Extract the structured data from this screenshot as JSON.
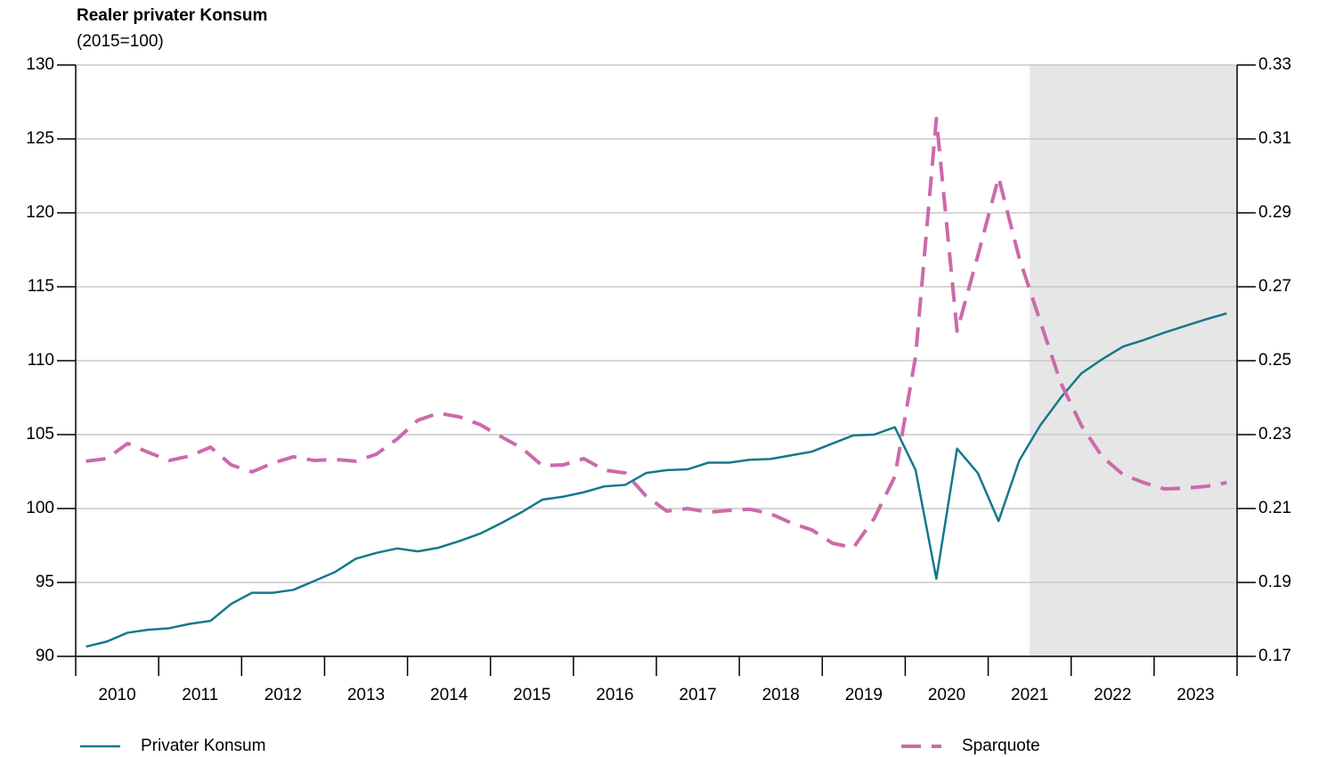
{
  "chart_data": {
    "type": "line",
    "title": "Realer privater Konsum",
    "subtitle": "(2015=100)",
    "x": [
      2010.125,
      2010.375,
      2010.625,
      2010.875,
      2011.125,
      2011.375,
      2011.625,
      2011.875,
      2012.125,
      2012.375,
      2012.625,
      2012.875,
      2013.125,
      2013.375,
      2013.625,
      2013.875,
      2014.125,
      2014.375,
      2014.625,
      2014.875,
      2015.125,
      2015.375,
      2015.625,
      2015.875,
      2016.125,
      2016.375,
      2016.625,
      2016.875,
      2017.125,
      2017.375,
      2017.625,
      2017.875,
      2018.125,
      2018.375,
      2018.625,
      2018.875,
      2019.125,
      2019.375,
      2019.625,
      2019.875,
      2020.125,
      2020.375,
      2020.625,
      2020.875,
      2021.125,
      2021.375,
      2021.625,
      2021.875,
      2022.125,
      2022.375,
      2022.625,
      2022.875,
      2023.125,
      2023.375,
      2023.625,
      2023.875
    ],
    "series": [
      {
        "name": "Privater Konsum",
        "color": "#13798a",
        "dash": false,
        "axis": "y",
        "values": [
          90.66,
          91.0,
          91.6,
          91.8,
          91.9,
          92.2,
          92.4,
          93.55,
          94.3,
          94.3,
          94.5,
          95.1,
          95.7,
          96.6,
          97.0,
          97.3,
          97.1,
          97.35,
          97.8,
          98.3,
          99.0,
          99.75,
          100.6,
          100.8,
          101.1,
          101.5,
          101.6,
          102.4,
          102.6,
          102.65,
          103.1,
          103.1,
          103.3,
          103.35,
          103.6,
          103.85,
          104.4,
          104.95,
          105.0,
          105.5,
          102.6,
          95.25,
          104.05,
          102.4,
          99.15,
          103.25,
          105.6,
          107.5,
          109.15,
          110.1,
          110.95,
          111.4,
          111.9,
          112.35,
          112.8,
          113.2
        ]
      },
      {
        "name": "Sparquote",
        "color": "#cc6aab",
        "dash": true,
        "axis": "y2",
        "values": [
          0.2228,
          0.2235,
          0.2276,
          0.2252,
          0.223,
          0.2242,
          0.2266,
          0.2218,
          0.2199,
          0.2223,
          0.224,
          0.223,
          0.2233,
          0.2228,
          0.2247,
          0.2288,
          0.2339,
          0.2358,
          0.2348,
          0.2327,
          0.2295,
          0.2264,
          0.2216,
          0.2218,
          0.2235,
          0.2204,
          0.2196,
          0.2134,
          0.2093,
          0.21,
          0.209,
          0.2095,
          0.2098,
          0.2086,
          0.2061,
          0.2042,
          0.2006,
          0.1994,
          0.2073,
          0.2187,
          0.2512,
          0.3155,
          0.258,
          0.2784,
          0.2996,
          0.2777,
          0.2608,
          0.244,
          0.2324,
          0.224,
          0.2192,
          0.217,
          0.2153,
          0.2155,
          0.216,
          0.217
        ]
      }
    ],
    "xlim": [
      2010,
      2024
    ],
    "xticks": [
      {
        "value": 2010.5,
        "label": "2010"
      },
      {
        "value": 2011.5,
        "label": "2011"
      },
      {
        "value": 2012.5,
        "label": "2012"
      },
      {
        "value": 2013.5,
        "label": "2013"
      },
      {
        "value": 2014.5,
        "label": "2014"
      },
      {
        "value": 2015.5,
        "label": "2015"
      },
      {
        "value": 2016.5,
        "label": "2016"
      },
      {
        "value": 2017.5,
        "label": "2017"
      },
      {
        "value": 2018.5,
        "label": "2018"
      },
      {
        "value": 2019.5,
        "label": "2019"
      },
      {
        "value": 2020.5,
        "label": "2020"
      },
      {
        "value": 2021.5,
        "label": "2021"
      },
      {
        "value": 2022.5,
        "label": "2022"
      },
      {
        "value": 2023.5,
        "label": "2023"
      }
    ],
    "ylim": [
      90,
      130
    ],
    "yticks": [
      90,
      95,
      100,
      105,
      110,
      115,
      120,
      125,
      130
    ],
    "y2lim": [
      0.17,
      0.33
    ],
    "y2ticks": [
      0.17,
      0.19,
      0.21,
      0.23,
      0.25,
      0.27,
      0.29,
      0.31,
      0.33
    ],
    "shaded_xlim": [
      2021.5,
      2024
    ],
    "grid": true,
    "legend": "bottom"
  }
}
